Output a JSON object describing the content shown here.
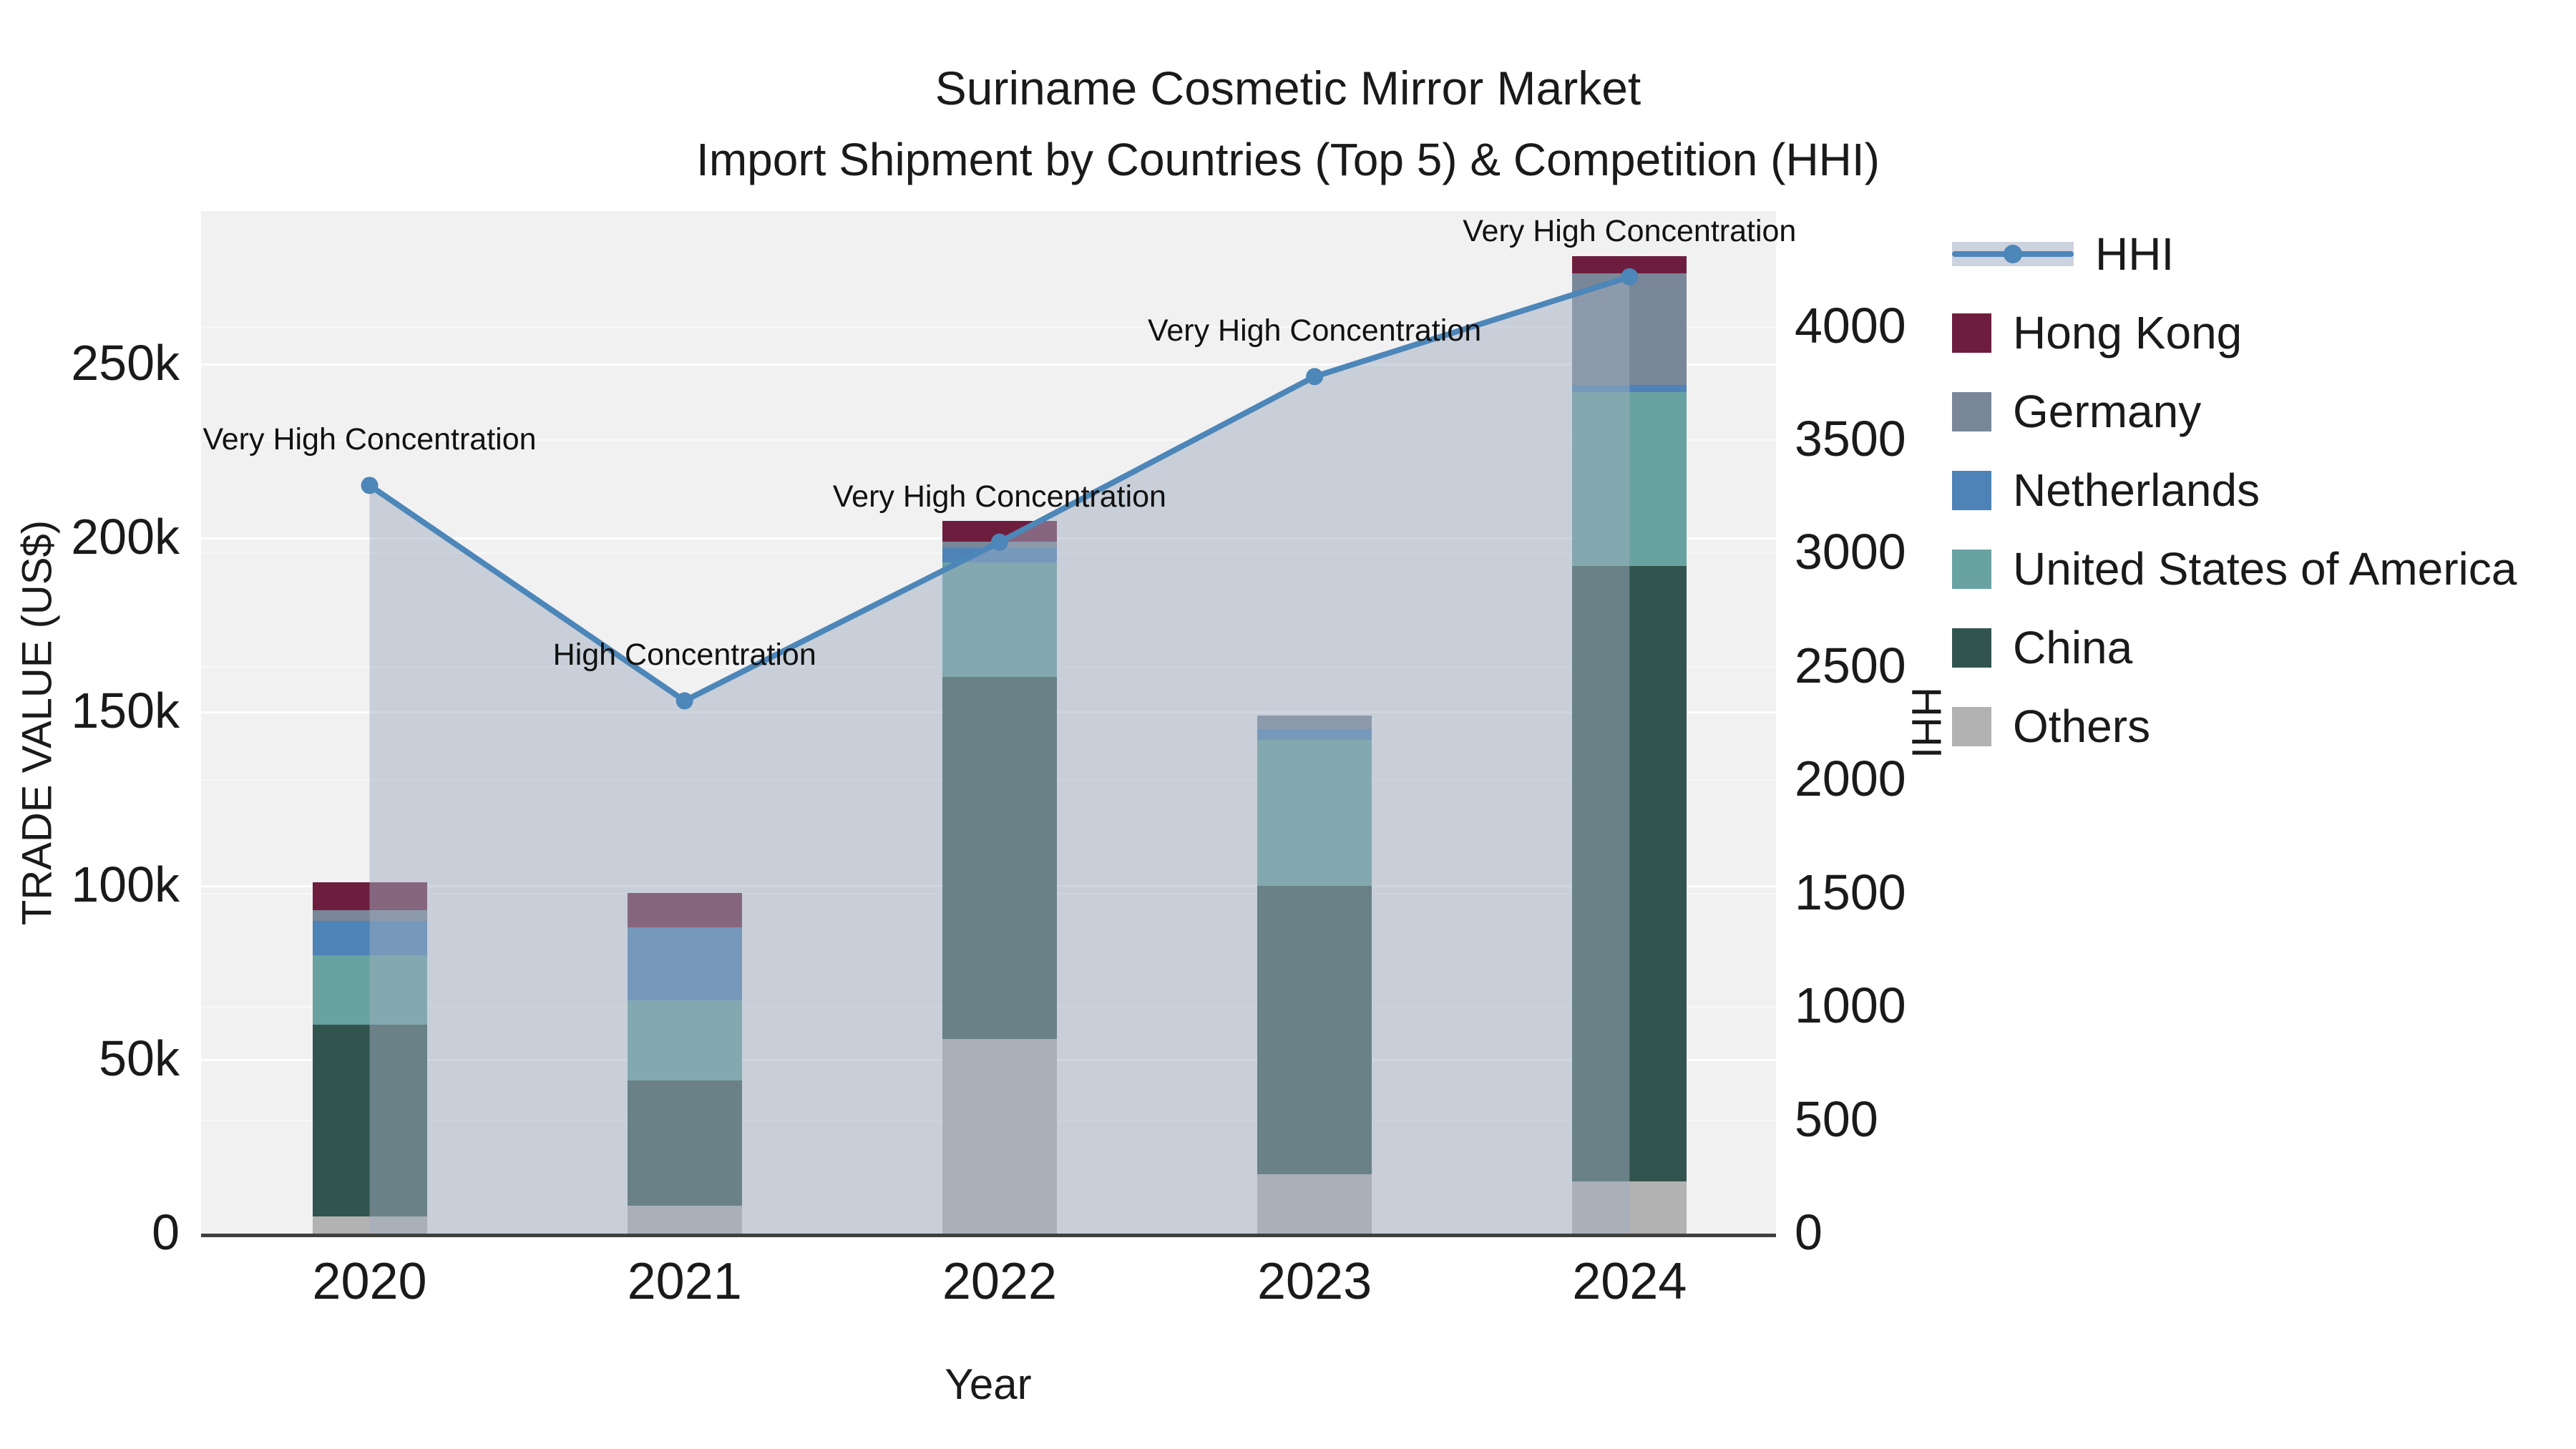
{
  "title": {
    "line1": "Suriname Cosmetic Mirror Market",
    "line2": "Import Shipment by Countries (Top 5) & Competition (HHI)"
  },
  "axes": {
    "x_title": "Year",
    "y_left_title": "TRADE VALUE (US$)",
    "y_right_title": "HHI"
  },
  "legend": {
    "items": [
      {
        "label": "HHI",
        "marker": "line",
        "color": "#4d86b8"
      },
      {
        "label": "Hong Kong",
        "marker": "square",
        "color": "#6d1e3e"
      },
      {
        "label": "Germany",
        "marker": "square",
        "color": "#7a8799"
      },
      {
        "label": "Netherlands",
        "marker": "square",
        "color": "#4d83b6"
      },
      {
        "label": "United States of America",
        "marker": "square",
        "color": "#68a2a1"
      },
      {
        "label": "China",
        "marker": "square",
        "color": "#32544f"
      },
      {
        "label": "Others",
        "marker": "square",
        "color": "#b2b2b2"
      }
    ]
  },
  "chart_data": {
    "type": "bar",
    "stacked": true,
    "title": "Suriname Cosmetic Mirror Market",
    "subtitle": "Import Shipment by Countries (Top 5) & Competition (HHI)",
    "categories": [
      "2020",
      "2021",
      "2022",
      "2023",
      "2024"
    ],
    "xlabel": "Year",
    "ylabel_left": "TRADE VALUE (US$)",
    "ylabel_right": "HHI",
    "ylim_left": [
      0,
      294000
    ],
    "ylim_right": [
      0,
      4510
    ],
    "grid": true,
    "legend_position": "right",
    "plot_bg": "#f1f1f2",
    "series": [
      {
        "name": "Others",
        "color": "#b2b2b2",
        "values": [
          5000,
          8000,
          56000,
          17000,
          15000
        ]
      },
      {
        "name": "China",
        "color": "#32544f",
        "values": [
          55000,
          36000,
          104000,
          83000,
          177000
        ]
      },
      {
        "name": "United States of America",
        "color": "#68a2a1",
        "values": [
          20000,
          23000,
          33000,
          42000,
          50000
        ]
      },
      {
        "name": "Netherlands",
        "color": "#4d83b6",
        "values": [
          10000,
          21000,
          4000,
          3000,
          2000
        ]
      },
      {
        "name": "Germany",
        "color": "#7a8799",
        "values": [
          3000,
          0,
          2000,
          4000,
          32000
        ]
      },
      {
        "name": "Hong Kong",
        "color": "#6d1e3e",
        "values": [
          8000,
          10000,
          6000,
          0,
          5000
        ]
      }
    ],
    "bar_totals": [
      101000,
      98000,
      205000,
      149000,
      281000
    ],
    "line_series": {
      "name": "HHI",
      "color": "#4d86b8",
      "area_fill": "rgba(160,173,192,0.5)",
      "values": [
        3300,
        2350,
        3050,
        3780,
        4220
      ]
    },
    "annotations": [
      {
        "x": "2020",
        "text": "Very High Concentration"
      },
      {
        "x": "2021",
        "text": "High Concentration"
      },
      {
        "x": "2022",
        "text": "Very High Concentration"
      },
      {
        "x": "2023",
        "text": "Very High Concentration"
      },
      {
        "x": "2024",
        "text": "Very High Concentration"
      }
    ],
    "yticks_left": [
      {
        "label": "0",
        "value": 0
      },
      {
        "label": "50k",
        "value": 50000
      },
      {
        "label": "100k",
        "value": 100000
      },
      {
        "label": "150k",
        "value": 150000
      },
      {
        "label": "200k",
        "value": 200000
      },
      {
        "label": "250k",
        "value": 250000
      }
    ],
    "yticks_right": [
      {
        "label": "0",
        "value": 0
      },
      {
        "label": "500",
        "value": 500
      },
      {
        "label": "1000",
        "value": 1000
      },
      {
        "label": "1500",
        "value": 1500
      },
      {
        "label": "2000",
        "value": 2000
      },
      {
        "label": "2500",
        "value": 2500
      },
      {
        "label": "3000",
        "value": 3000
      },
      {
        "label": "3500",
        "value": 3500
      },
      {
        "label": "4000",
        "value": 4000
      }
    ]
  }
}
